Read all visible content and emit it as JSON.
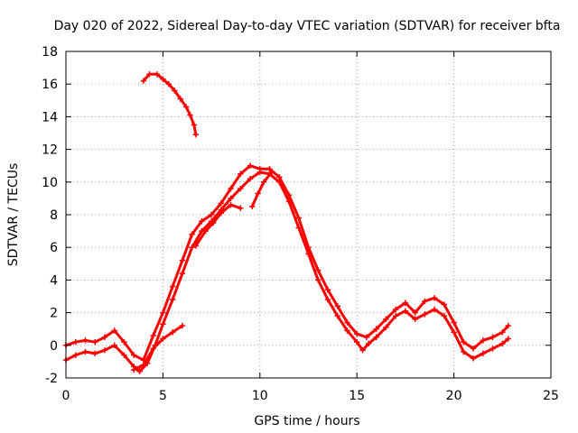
{
  "chart_data": {
    "type": "scatter",
    "title": "Day 020 of 2022, Sidereal Day-to-day VTEC variation (SDTVAR) for receiver bfta",
    "xlabel": "GPS time / hours",
    "ylabel": "SDTVAR / TECUs",
    "xlim": [
      0,
      25
    ],
    "ylim": [
      -2,
      18
    ],
    "x_ticks": [
      "0",
      "5",
      "10",
      "15",
      "20",
      "25"
    ],
    "y_ticks": [
      "-2",
      "0",
      "2",
      "4",
      "6",
      "8",
      "10",
      "12",
      "14",
      "16",
      "18"
    ],
    "grid": true,
    "marker": "plus",
    "color": "#ff0000",
    "series": [
      {
        "name": "trace-a",
        "points": [
          [
            0.0,
            -0.9
          ],
          [
            0.5,
            -0.6
          ],
          [
            1.0,
            -0.4
          ],
          [
            1.5,
            -0.5
          ],
          [
            2.0,
            -0.3
          ],
          [
            2.5,
            0.0
          ],
          [
            3.0,
            -0.6
          ],
          [
            3.5,
            -1.3
          ],
          [
            3.8,
            -1.6
          ],
          [
            4.2,
            -1.1
          ],
          [
            4.6,
            0.0
          ],
          [
            5.0,
            1.3
          ],
          [
            5.5,
            2.8
          ],
          [
            6.0,
            4.4
          ],
          [
            6.5,
            6.0
          ],
          [
            7.0,
            7.0
          ],
          [
            7.5,
            7.6
          ],
          [
            8.0,
            8.3
          ],
          [
            8.5,
            9.0
          ],
          [
            9.0,
            9.6
          ],
          [
            9.5,
            10.2
          ],
          [
            10.0,
            10.6
          ],
          [
            10.5,
            10.5
          ],
          [
            11.0,
            10.0
          ],
          [
            11.5,
            8.8
          ],
          [
            12.0,
            7.2
          ],
          [
            12.5,
            5.6
          ],
          [
            13.0,
            4.0
          ],
          [
            13.5,
            2.8
          ],
          [
            14.0,
            1.8
          ],
          [
            14.5,
            0.9
          ],
          [
            15.0,
            0.2
          ],
          [
            15.3,
            -0.3
          ],
          [
            15.6,
            0.1
          ],
          [
            16.0,
            0.5
          ],
          [
            16.5,
            1.1
          ],
          [
            17.0,
            1.8
          ],
          [
            17.5,
            2.1
          ],
          [
            18.0,
            1.6
          ],
          [
            18.5,
            1.9
          ],
          [
            19.0,
            2.2
          ],
          [
            19.5,
            1.8
          ],
          [
            20.0,
            0.8
          ],
          [
            20.5,
            -0.4
          ],
          [
            21.0,
            -0.8
          ],
          [
            21.5,
            -0.5
          ],
          [
            22.0,
            -0.2
          ],
          [
            22.5,
            0.1
          ],
          [
            22.8,
            0.4
          ]
        ]
      },
      {
        "name": "trace-b",
        "points": [
          [
            0.0,
            0.0
          ],
          [
            0.5,
            0.2
          ],
          [
            1.0,
            0.3
          ],
          [
            1.5,
            0.2
          ],
          [
            2.0,
            0.5
          ],
          [
            2.5,
            0.9
          ],
          [
            3.0,
            0.2
          ],
          [
            3.5,
            -0.6
          ],
          [
            4.0,
            -0.9
          ],
          [
            4.5,
            0.6
          ],
          [
            5.0,
            2.0
          ],
          [
            5.5,
            3.6
          ],
          [
            6.0,
            5.2
          ],
          [
            6.5,
            6.8
          ],
          [
            7.0,
            7.6
          ],
          [
            7.5,
            8.0
          ],
          [
            8.0,
            8.7
          ],
          [
            8.5,
            9.6
          ],
          [
            9.0,
            10.5
          ],
          [
            9.5,
            11.0
          ],
          [
            10.0,
            10.8
          ],
          [
            10.5,
            10.8
          ],
          [
            11.0,
            10.3
          ],
          [
            11.5,
            9.2
          ],
          [
            12.0,
            7.8
          ],
          [
            12.5,
            6.0
          ],
          [
            13.0,
            4.6
          ],
          [
            13.5,
            3.4
          ],
          [
            14.0,
            2.4
          ],
          [
            14.5,
            1.4
          ],
          [
            15.0,
            0.7
          ],
          [
            15.5,
            0.5
          ],
          [
            16.0,
            1.0
          ],
          [
            16.5,
            1.6
          ],
          [
            17.0,
            2.2
          ],
          [
            17.5,
            2.6
          ],
          [
            18.0,
            2.0
          ],
          [
            18.5,
            2.7
          ],
          [
            19.0,
            2.9
          ],
          [
            19.5,
            2.5
          ],
          [
            20.0,
            1.4
          ],
          [
            20.5,
            0.2
          ],
          [
            21.0,
            -0.2
          ],
          [
            21.5,
            0.3
          ],
          [
            22.0,
            0.5
          ],
          [
            22.5,
            0.8
          ],
          [
            22.8,
            1.2
          ]
        ]
      },
      {
        "name": "trace-c",
        "points": [
          [
            3.5,
            -1.5
          ],
          [
            4.0,
            -1.2
          ],
          [
            4.5,
            -0.2
          ],
          [
            5.0,
            0.4
          ],
          [
            5.5,
            0.8
          ],
          [
            6.0,
            1.2
          ]
        ]
      },
      {
        "name": "trace-d",
        "points": [
          [
            6.7,
            6.1
          ],
          [
            7.2,
            7.0
          ],
          [
            7.6,
            7.5
          ],
          [
            8.0,
            8.1
          ],
          [
            8.5,
            8.6
          ],
          [
            9.0,
            8.4
          ]
        ]
      },
      {
        "name": "trace-e",
        "points": [
          [
            9.6,
            8.5
          ],
          [
            9.9,
            9.3
          ],
          [
            10.2,
            10.0
          ],
          [
            10.6,
            10.6
          ]
        ]
      },
      {
        "name": "trace-f",
        "points": [
          [
            4.0,
            16.2
          ],
          [
            4.3,
            16.6
          ],
          [
            4.7,
            16.6
          ],
          [
            5.0,
            16.3
          ],
          [
            5.3,
            16.0
          ],
          [
            5.6,
            15.6
          ],
          [
            5.9,
            15.1
          ],
          [
            6.2,
            14.6
          ],
          [
            6.4,
            14.1
          ],
          [
            6.6,
            13.5
          ],
          [
            6.7,
            12.9
          ]
        ]
      }
    ]
  }
}
